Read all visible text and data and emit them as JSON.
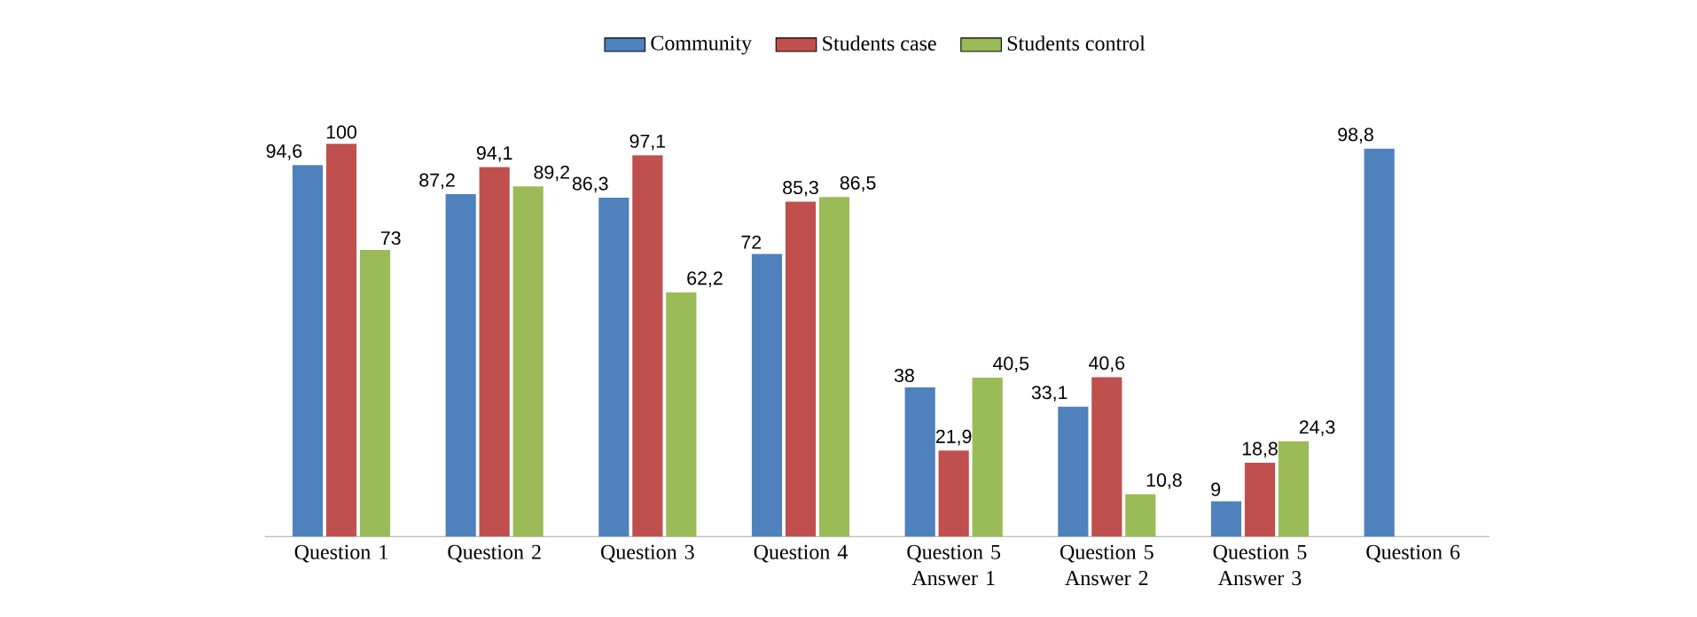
{
  "chart_data": {
    "type": "bar",
    "categories": [
      "Question 1",
      "Question 2",
      "Question 3",
      "Question 4",
      "Question 5 Answer 1",
      "Question 5 Answer 2",
      "Question 5 Answer 3",
      "Question 6"
    ],
    "series": [
      {
        "name": "Community",
        "color": "#4f81bd",
        "values": [
          94.6,
          87.2,
          86.3,
          72,
          38,
          33.1,
          9,
          98.8
        ],
        "value_labels": [
          "94,6",
          "87,2",
          "86,3",
          "72",
          "38",
          "33,1",
          "9",
          "98,8"
        ]
      },
      {
        "name": "Students case",
        "color": "#c0504d",
        "values": [
          100,
          94.1,
          97.1,
          85.3,
          21.9,
          40.6,
          18.8,
          null
        ],
        "value_labels": [
          "100",
          "94,1",
          "97,1",
          "85,3",
          "21,9",
          "40,6",
          "18,8",
          null
        ]
      },
      {
        "name": "Students control",
        "color": "#9bbb59",
        "values": [
          73,
          89.2,
          62.2,
          86.5,
          40.5,
          10.8,
          24.3,
          null
        ],
        "value_labels": [
          "73",
          "89,2",
          "62,2",
          "86,5",
          "40,5",
          "10,8",
          "24,3",
          null
        ]
      }
    ],
    "legend": "top"
  }
}
